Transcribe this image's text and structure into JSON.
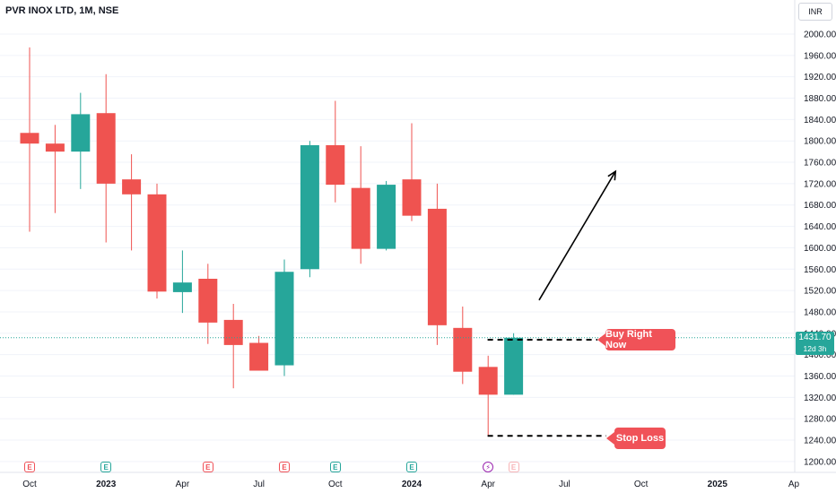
{
  "header": {
    "title": "PVR INOX LTD, 1M, NSE"
  },
  "currency": "INR",
  "last_price": {
    "value": "1431.70",
    "countdown": "12d 3h"
  },
  "annotations": {
    "buy_label": "Buy Right Now",
    "stop_label": "Stop Loss"
  },
  "colors": {
    "up": "#26a69a",
    "down": "#ef5350",
    "callout": "#f05258",
    "grid": "#f0f3fa"
  },
  "chart_data": {
    "type": "candlestick",
    "y_axis_ticks": [
      "1200.00",
      "1240.00",
      "1280.00",
      "1320.00",
      "1360.00",
      "1400.00",
      "1440.00",
      "1480.00",
      "1520.00",
      "1560.00",
      "1600.00",
      "1640.00",
      "1680.00",
      "1720.00",
      "1760.00",
      "1800.00",
      "1840.00",
      "1880.00",
      "1920.00",
      "1960.00",
      "2000.00"
    ],
    "ylim": [
      1190,
      2015
    ],
    "x_axis_labels": [
      {
        "label": "Oct",
        "index": 0
      },
      {
        "label": "2023",
        "index": 3
      },
      {
        "label": "Apr",
        "index": 6
      },
      {
        "label": "Jul",
        "index": 9
      },
      {
        "label": "Oct",
        "index": 12
      },
      {
        "label": "2024",
        "index": 15
      },
      {
        "label": "Apr",
        "index": 18
      },
      {
        "label": "Jul",
        "index": 21
      },
      {
        "label": "Oct",
        "index": 24
      },
      {
        "label": "2025",
        "index": 27
      },
      {
        "label": "Ap",
        "index": 30
      }
    ],
    "candles": [
      {
        "date": "2022-09",
        "open": 1815,
        "high": 1975,
        "low": 1630,
        "close": 1795
      },
      {
        "date": "2022-10",
        "open": 1795,
        "high": 1830,
        "low": 1665,
        "close": 1780
      },
      {
        "date": "2022-11",
        "open": 1780,
        "high": 1890,
        "low": 1710,
        "close": 1850
      },
      {
        "date": "2022-12",
        "open": 1852,
        "high": 1925,
        "low": 1610,
        "close": 1720
      },
      {
        "date": "2023-01",
        "open": 1728,
        "high": 1775,
        "low": 1595,
        "close": 1700
      },
      {
        "date": "2023-02",
        "open": 1700,
        "high": 1720,
        "low": 1505,
        "close": 1518
      },
      {
        "date": "2023-03",
        "open": 1517,
        "high": 1595,
        "low": 1478,
        "close": 1535
      },
      {
        "date": "2023-04",
        "open": 1542,
        "high": 1570,
        "low": 1420,
        "close": 1460
      },
      {
        "date": "2023-05",
        "open": 1465,
        "high": 1495,
        "low": 1337,
        "close": 1418
      },
      {
        "date": "2023-06",
        "open": 1422,
        "high": 1435,
        "low": 1370,
        "close": 1370
      },
      {
        "date": "2023-07",
        "open": 1380,
        "high": 1578,
        "low": 1360,
        "close": 1555
      },
      {
        "date": "2023-08",
        "open": 1560,
        "high": 1800,
        "low": 1545,
        "close": 1792
      },
      {
        "date": "2023-09",
        "open": 1792,
        "high": 1875,
        "low": 1685,
        "close": 1718
      },
      {
        "date": "2023-10",
        "open": 1712,
        "high": 1790,
        "low": 1570,
        "close": 1598
      },
      {
        "date": "2023-11",
        "open": 1598,
        "high": 1725,
        "low": 1595,
        "close": 1718
      },
      {
        "date": "2023-12",
        "open": 1728,
        "high": 1833,
        "low": 1650,
        "close": 1660
      },
      {
        "date": "2024-01",
        "open": 1673,
        "high": 1720,
        "low": 1418,
        "close": 1455
      },
      {
        "date": "2024-02",
        "open": 1450,
        "high": 1490,
        "low": 1345,
        "close": 1368
      },
      {
        "date": "2024-03",
        "open": 1377,
        "high": 1398,
        "low": 1248,
        "close": 1325
      },
      {
        "date": "2024-04",
        "open": 1325,
        "high": 1440,
        "low": 1325,
        "close": 1431.7
      }
    ],
    "buy_level": 1428,
    "stop_loss_level": 1248,
    "arrow": {
      "from": {
        "index": 20,
        "price": 1502
      },
      "to": {
        "index": 23,
        "price": 1743
      }
    }
  },
  "events": [
    {
      "type": "earnings",
      "style": "red",
      "index": 0,
      "label": "E"
    },
    {
      "type": "earnings",
      "style": "green",
      "index": 3,
      "label": "E"
    },
    {
      "type": "earnings",
      "style": "red",
      "index": 7,
      "label": "E"
    },
    {
      "type": "earnings",
      "style": "red",
      "index": 10,
      "label": "E"
    },
    {
      "type": "earnings",
      "style": "green",
      "index": 12,
      "label": "E"
    },
    {
      "type": "earnings",
      "style": "green",
      "index": 15,
      "label": "E"
    },
    {
      "type": "flash",
      "style": "purple",
      "index": 18,
      "label": "⚡"
    },
    {
      "type": "earnings",
      "style": "faint",
      "index": 19,
      "label": "E"
    }
  ]
}
